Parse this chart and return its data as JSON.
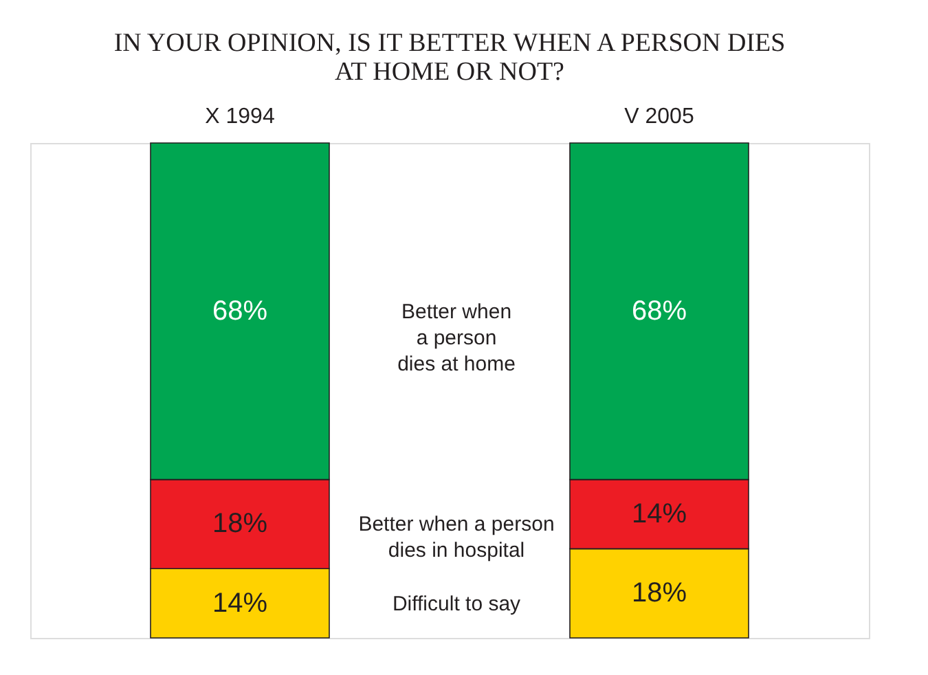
{
  "chart_data": {
    "type": "bar",
    "title": "IN YOUR OPINION, IS IT BETTER WHEN A PERSON DIES\nAT HOME OR NOT?",
    "categories": [
      "X 1994",
      "V 2005"
    ],
    "stacked": true,
    "series": [
      {
        "name": "Difficult to say",
        "color": "#ffd200",
        "values": [
          14,
          18
        ],
        "value_labels": [
          "14%",
          "18%"
        ]
      },
      {
        "name": "Better when a person dies in hospital",
        "color": "#ed1c24",
        "values": [
          18,
          14
        ],
        "value_labels": [
          "18%",
          "14%"
        ]
      },
      {
        "name": "Better when a person dies at home",
        "color": "#00a651",
        "values": [
          68,
          68
        ],
        "value_labels": [
          "68%",
          "68%"
        ]
      }
    ]
  }
}
